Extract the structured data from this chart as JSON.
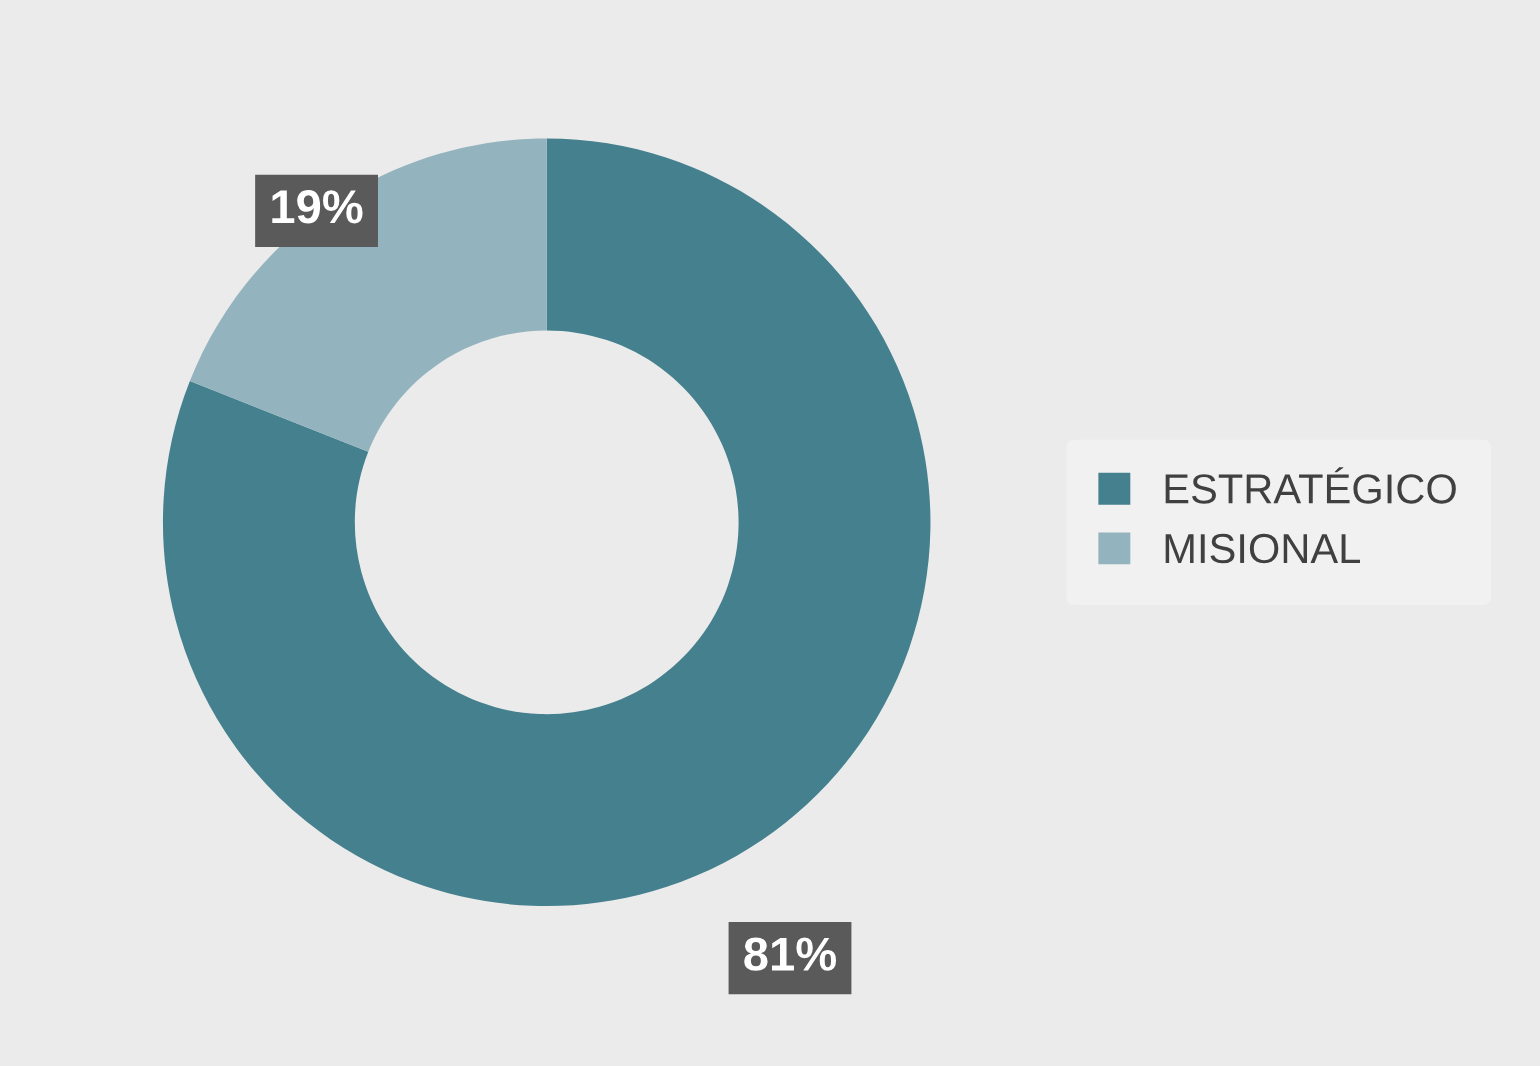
{
  "chart_data": {
    "type": "donut",
    "categories": [
      "ESTRATÉGICO",
      "MISIONAL"
    ],
    "values": [
      81,
      19
    ],
    "colors": [
      "#44808e",
      "#93b4be"
    ],
    "value_labels": [
      "81%",
      "19%"
    ],
    "legend": "right"
  }
}
